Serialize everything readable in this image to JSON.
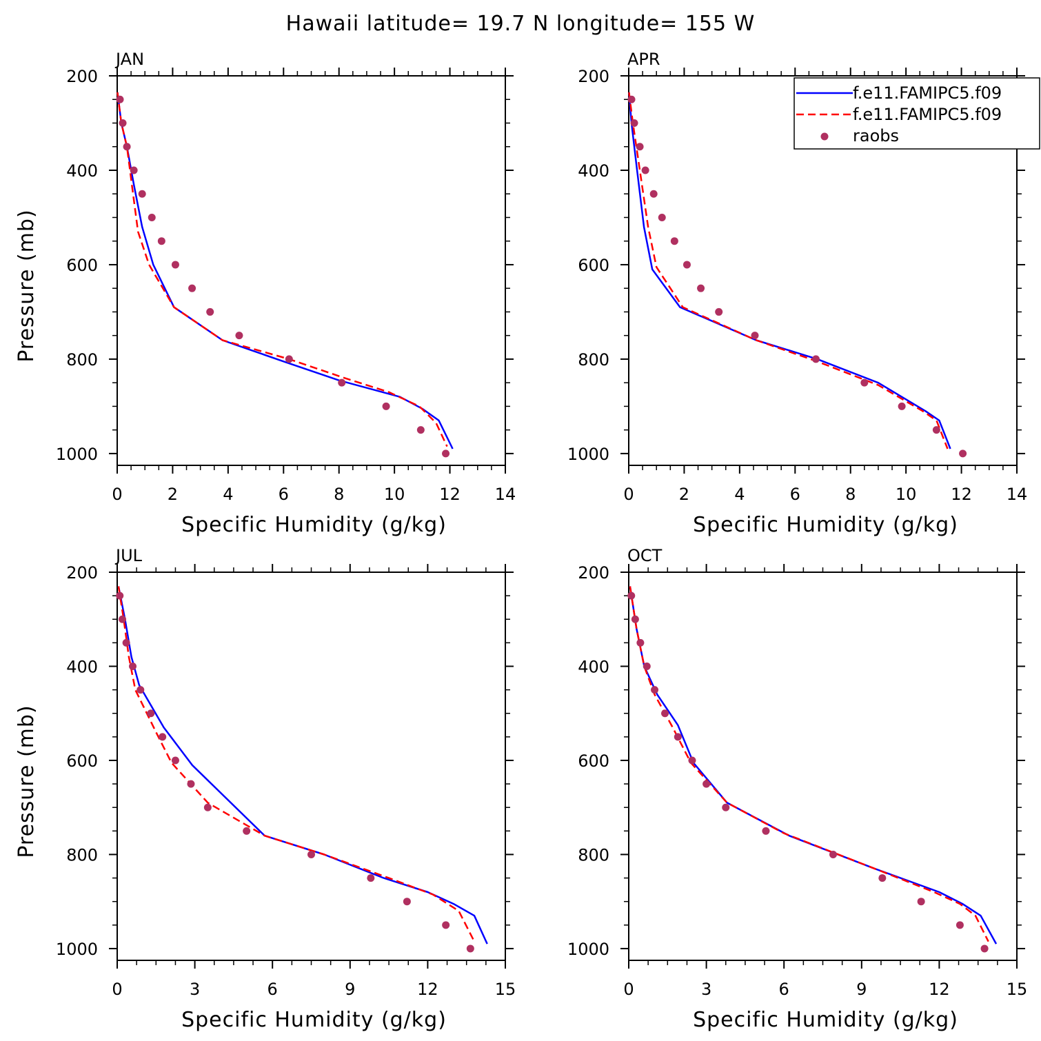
{
  "title": "Hawaii  latitude= 19.7 N longitude= 155 W",
  "legend": {
    "entries": [
      {
        "label": "f.e11.FAMIPC5.f09",
        "color": "#0000ff",
        "style": "solid"
      },
      {
        "label": "f.e11.FAMIPC5.f09",
        "color": "#ff0000",
        "style": "dashed"
      },
      {
        "label": "raobs",
        "color": "#b03060",
        "style": "dot"
      }
    ]
  },
  "chart_data": [
    {
      "type": "line",
      "panel": "JAN",
      "xlabel": "Specific Humidity (g/kg)",
      "ylabel": "Pressure (mb)",
      "xlim": [
        0,
        14
      ],
      "xticks": [
        0,
        2,
        4,
        6,
        8,
        10,
        12,
        14
      ],
      "ylim": [
        200,
        1025
      ],
      "yticks": [
        200,
        400,
        600,
        800,
        1000
      ],
      "y_reversed": true,
      "series": [
        {
          "name": "f.e11.FAMIPC5.f09",
          "color": "#0000ff",
          "style": "solid",
          "x": [
            0.01,
            0.15,
            0.35,
            0.6,
            0.9,
            1.3,
            2.05,
            3.8,
            6.0,
            8.0,
            10.2,
            11.0,
            11.6,
            12.1
          ],
          "y": [
            235,
            300,
            350,
            430,
            520,
            600,
            690,
            760,
            805,
            845,
            880,
            905,
            930,
            990
          ]
        },
        {
          "name": "f.e11.FAMIPC5.f09",
          "color": "#ff0000",
          "style": "dashed",
          "x": [
            0.01,
            0.15,
            0.35,
            0.55,
            0.75,
            1.15,
            2.05,
            2.8,
            3.8,
            6.2,
            8.2,
            9.8,
            10.9,
            11.5,
            11.9
          ],
          "y": [
            235,
            300,
            350,
            440,
            530,
            600,
            690,
            720,
            760,
            800,
            840,
            870,
            900,
            935,
            985
          ]
        },
        {
          "name": "raobs",
          "color": "#b03060",
          "style": "dot",
          "x": [
            0.1,
            0.2,
            0.35,
            0.6,
            0.9,
            1.25,
            1.6,
            2.1,
            2.7,
            3.35,
            4.4,
            6.2,
            8.1,
            9.7,
            10.95,
            11.85
          ],
          "y": [
            250,
            300,
            350,
            400,
            450,
            500,
            550,
            600,
            650,
            700,
            750,
            800,
            850,
            900,
            950,
            1000
          ]
        }
      ]
    },
    {
      "type": "line",
      "panel": "APR",
      "xlabel": "Specific Humidity (g/kg)",
      "ylabel": "",
      "xlim": [
        0,
        14
      ],
      "xticks": [
        0,
        2,
        4,
        6,
        8,
        10,
        12,
        14
      ],
      "ylim": [
        200,
        1025
      ],
      "yticks": [
        200,
        400,
        600,
        800,
        1000
      ],
      "y_reversed": true,
      "series": [
        {
          "name": "f.e11.FAMIPC5.f09",
          "color": "#0000ff",
          "style": "solid",
          "x": [
            0.01,
            0.1,
            0.3,
            0.55,
            0.85,
            1.85,
            4.6,
            6.8,
            9.0,
            10.7,
            11.2,
            11.6
          ],
          "y": [
            235,
            300,
            400,
            520,
            610,
            690,
            760,
            800,
            850,
            910,
            930,
            990
          ]
        },
        {
          "name": "f.e11.FAMIPC5.f09",
          "color": "#ff0000",
          "style": "dashed",
          "x": [
            0.01,
            0.15,
            0.4,
            0.7,
            1.0,
            1.95,
            4.6,
            6.8,
            9.0,
            10.6,
            11.1,
            11.5
          ],
          "y": [
            235,
            300,
            400,
            520,
            605,
            690,
            760,
            805,
            855,
            910,
            930,
            990
          ]
        },
        {
          "name": "raobs",
          "color": "#b03060",
          "style": "dot",
          "x": [
            0.1,
            0.2,
            0.4,
            0.6,
            0.9,
            1.2,
            1.65,
            2.1,
            2.6,
            3.25,
            4.55,
            6.75,
            8.5,
            9.85,
            11.1,
            12.05
          ],
          "y": [
            250,
            300,
            350,
            400,
            450,
            500,
            550,
            600,
            650,
            700,
            750,
            800,
            850,
            900,
            950,
            1000
          ]
        }
      ]
    },
    {
      "type": "line",
      "panel": "JUL",
      "xlabel": "Specific Humidity (g/kg)",
      "ylabel": "Pressure (mb)",
      "xlim": [
        0,
        15
      ],
      "xticks": [
        0,
        3,
        6,
        9,
        12,
        15
      ],
      "ylim": [
        200,
        1025
      ],
      "yticks": [
        200,
        400,
        600,
        800,
        1000
      ],
      "y_reversed": true,
      "series": [
        {
          "name": "f.e11.FAMIPC5.f09",
          "color": "#0000ff",
          "style": "solid",
          "x": [
            0.05,
            0.3,
            0.55,
            0.85,
            1.8,
            2.9,
            5.7,
            8.0,
            10.3,
            12.0,
            13.0,
            13.8,
            14.3
          ],
          "y": [
            230,
            300,
            380,
            440,
            530,
            610,
            760,
            800,
            850,
            880,
            905,
            930,
            990
          ]
        },
        {
          "name": "f.e11.FAMIPC5.f09",
          "color": "#ff0000",
          "style": "dashed",
          "x": [
            0.05,
            0.25,
            0.45,
            0.7,
            1.5,
            2.1,
            3.5,
            5.7,
            8.0,
            10.5,
            12.2,
            13.2,
            13.8
          ],
          "y": [
            230,
            300,
            380,
            450,
            540,
            605,
            690,
            760,
            800,
            850,
            885,
            920,
            985
          ]
        },
        {
          "name": "raobs",
          "color": "#b03060",
          "style": "dot",
          "x": [
            0.1,
            0.2,
            0.35,
            0.6,
            0.9,
            1.3,
            1.75,
            2.25,
            2.85,
            3.5,
            5.0,
            7.5,
            9.8,
            11.2,
            12.7,
            13.65
          ],
          "y": [
            250,
            300,
            350,
            400,
            450,
            500,
            550,
            600,
            650,
            700,
            750,
            800,
            850,
            900,
            950,
            1000
          ]
        }
      ]
    },
    {
      "type": "line",
      "panel": "OCT",
      "xlabel": "Specific Humidity (g/kg)",
      "ylabel": "",
      "xlim": [
        0,
        15
      ],
      "xticks": [
        0,
        3,
        6,
        9,
        12,
        15
      ],
      "ylim": [
        200,
        1025
      ],
      "yticks": [
        200,
        400,
        600,
        800,
        1000
      ],
      "y_reversed": true,
      "series": [
        {
          "name": "f.e11.FAMIPC5.f09",
          "color": "#0000ff",
          "style": "solid",
          "x": [
            0.05,
            0.3,
            0.6,
            1.1,
            1.9,
            2.5,
            3.8,
            6.2,
            9.5,
            12.0,
            12.9,
            13.6,
            14.2
          ],
          "y": [
            230,
            320,
            400,
            460,
            525,
            605,
            690,
            760,
            830,
            880,
            905,
            930,
            990
          ]
        },
        {
          "name": "f.e11.FAMIPC5.f09",
          "color": "#ff0000",
          "style": "dashed",
          "x": [
            0.05,
            0.3,
            0.6,
            1.0,
            1.7,
            2.4,
            3.8,
            6.0,
            9.5,
            11.8,
            12.8,
            13.4,
            13.9
          ],
          "y": [
            230,
            320,
            400,
            460,
            530,
            605,
            690,
            755,
            830,
            880,
            905,
            930,
            985
          ]
        },
        {
          "name": "raobs",
          "color": "#b03060",
          "style": "dot",
          "x": [
            0.1,
            0.25,
            0.45,
            0.7,
            1.0,
            1.4,
            1.9,
            2.45,
            3.0,
            3.75,
            5.3,
            7.9,
            9.8,
            11.3,
            12.8,
            13.75
          ],
          "y": [
            250,
            300,
            350,
            400,
            450,
            500,
            550,
            600,
            650,
            700,
            750,
            800,
            850,
            900,
            950,
            1000
          ]
        }
      ]
    }
  ]
}
